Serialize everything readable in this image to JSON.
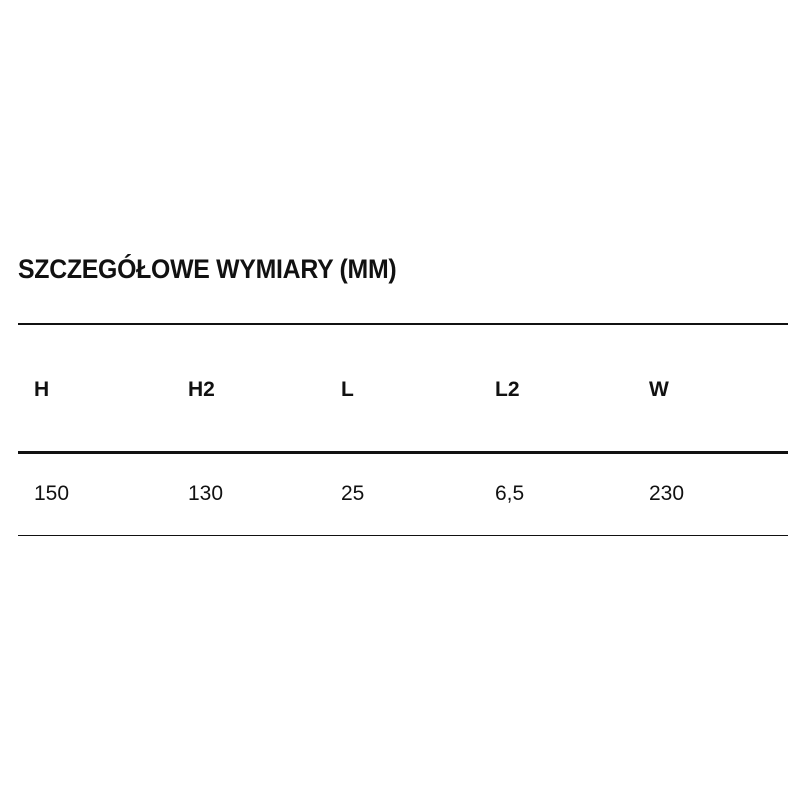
{
  "title": "SZCZEGÓŁOWE WYMIARY (MM)",
  "table": {
    "headers": [
      "H",
      "H2",
      "L",
      "L2",
      "W"
    ],
    "rows": [
      [
        "150",
        "130",
        "25",
        "6,5",
        "230"
      ]
    ]
  }
}
